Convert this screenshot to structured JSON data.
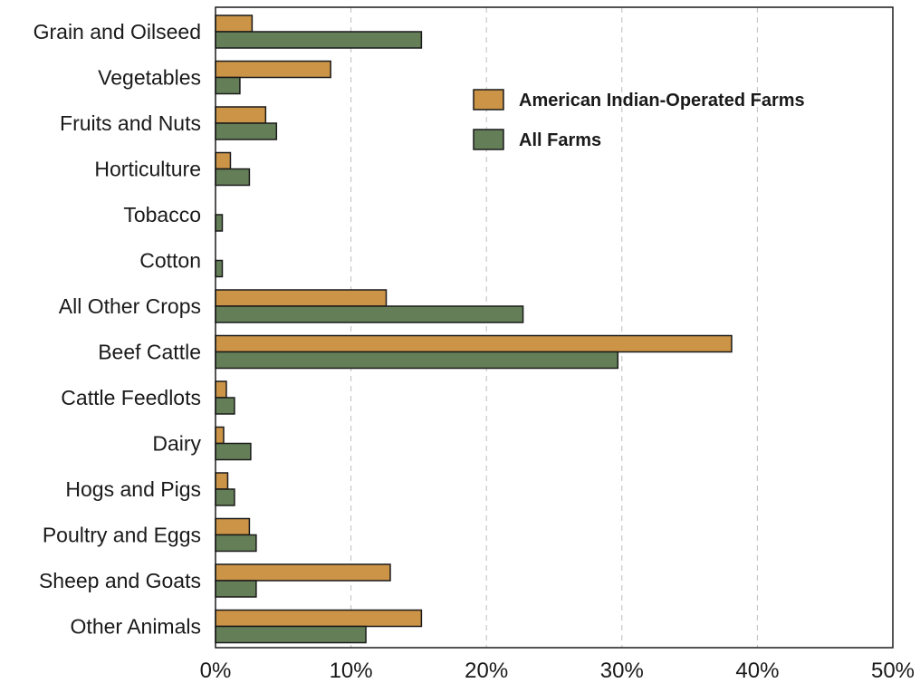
{
  "chart_data": {
    "type": "bar",
    "orientation": "horizontal",
    "categories": [
      "Grain and Oilseed",
      "Vegetables",
      "Fruits and Nuts",
      "Horticulture",
      "Tobacco",
      "Cotton",
      "All Other Crops",
      "Beef Cattle",
      "Cattle Feedlots",
      "Dairy",
      "Hogs and Pigs",
      "Poultry and Eggs",
      "Sheep and Goats",
      "Other Animals"
    ],
    "series": [
      {
        "name": "American Indian-Operated Farms",
        "color": "#cc9447",
        "values": [
          2.7,
          8.5,
          3.7,
          1.1,
          0,
          0,
          12.6,
          38.1,
          0.8,
          0.6,
          0.9,
          2.5,
          12.9,
          15.2
        ]
      },
      {
        "name": "All Farms",
        "color": "#647f57",
        "values": [
          15.2,
          1.8,
          4.5,
          2.5,
          0.5,
          0.5,
          22.7,
          29.7,
          1.4,
          2.6,
          1.4,
          3.0,
          3.0,
          11.1
        ]
      }
    ],
    "xlim": [
      0,
      50
    ],
    "xticks": [
      "0%",
      "10%",
      "20%",
      "30%",
      "40%",
      "50%"
    ],
    "grid": "vertical dashed",
    "legend_position": "top-right",
    "title": "",
    "xlabel": "",
    "ylabel": ""
  }
}
